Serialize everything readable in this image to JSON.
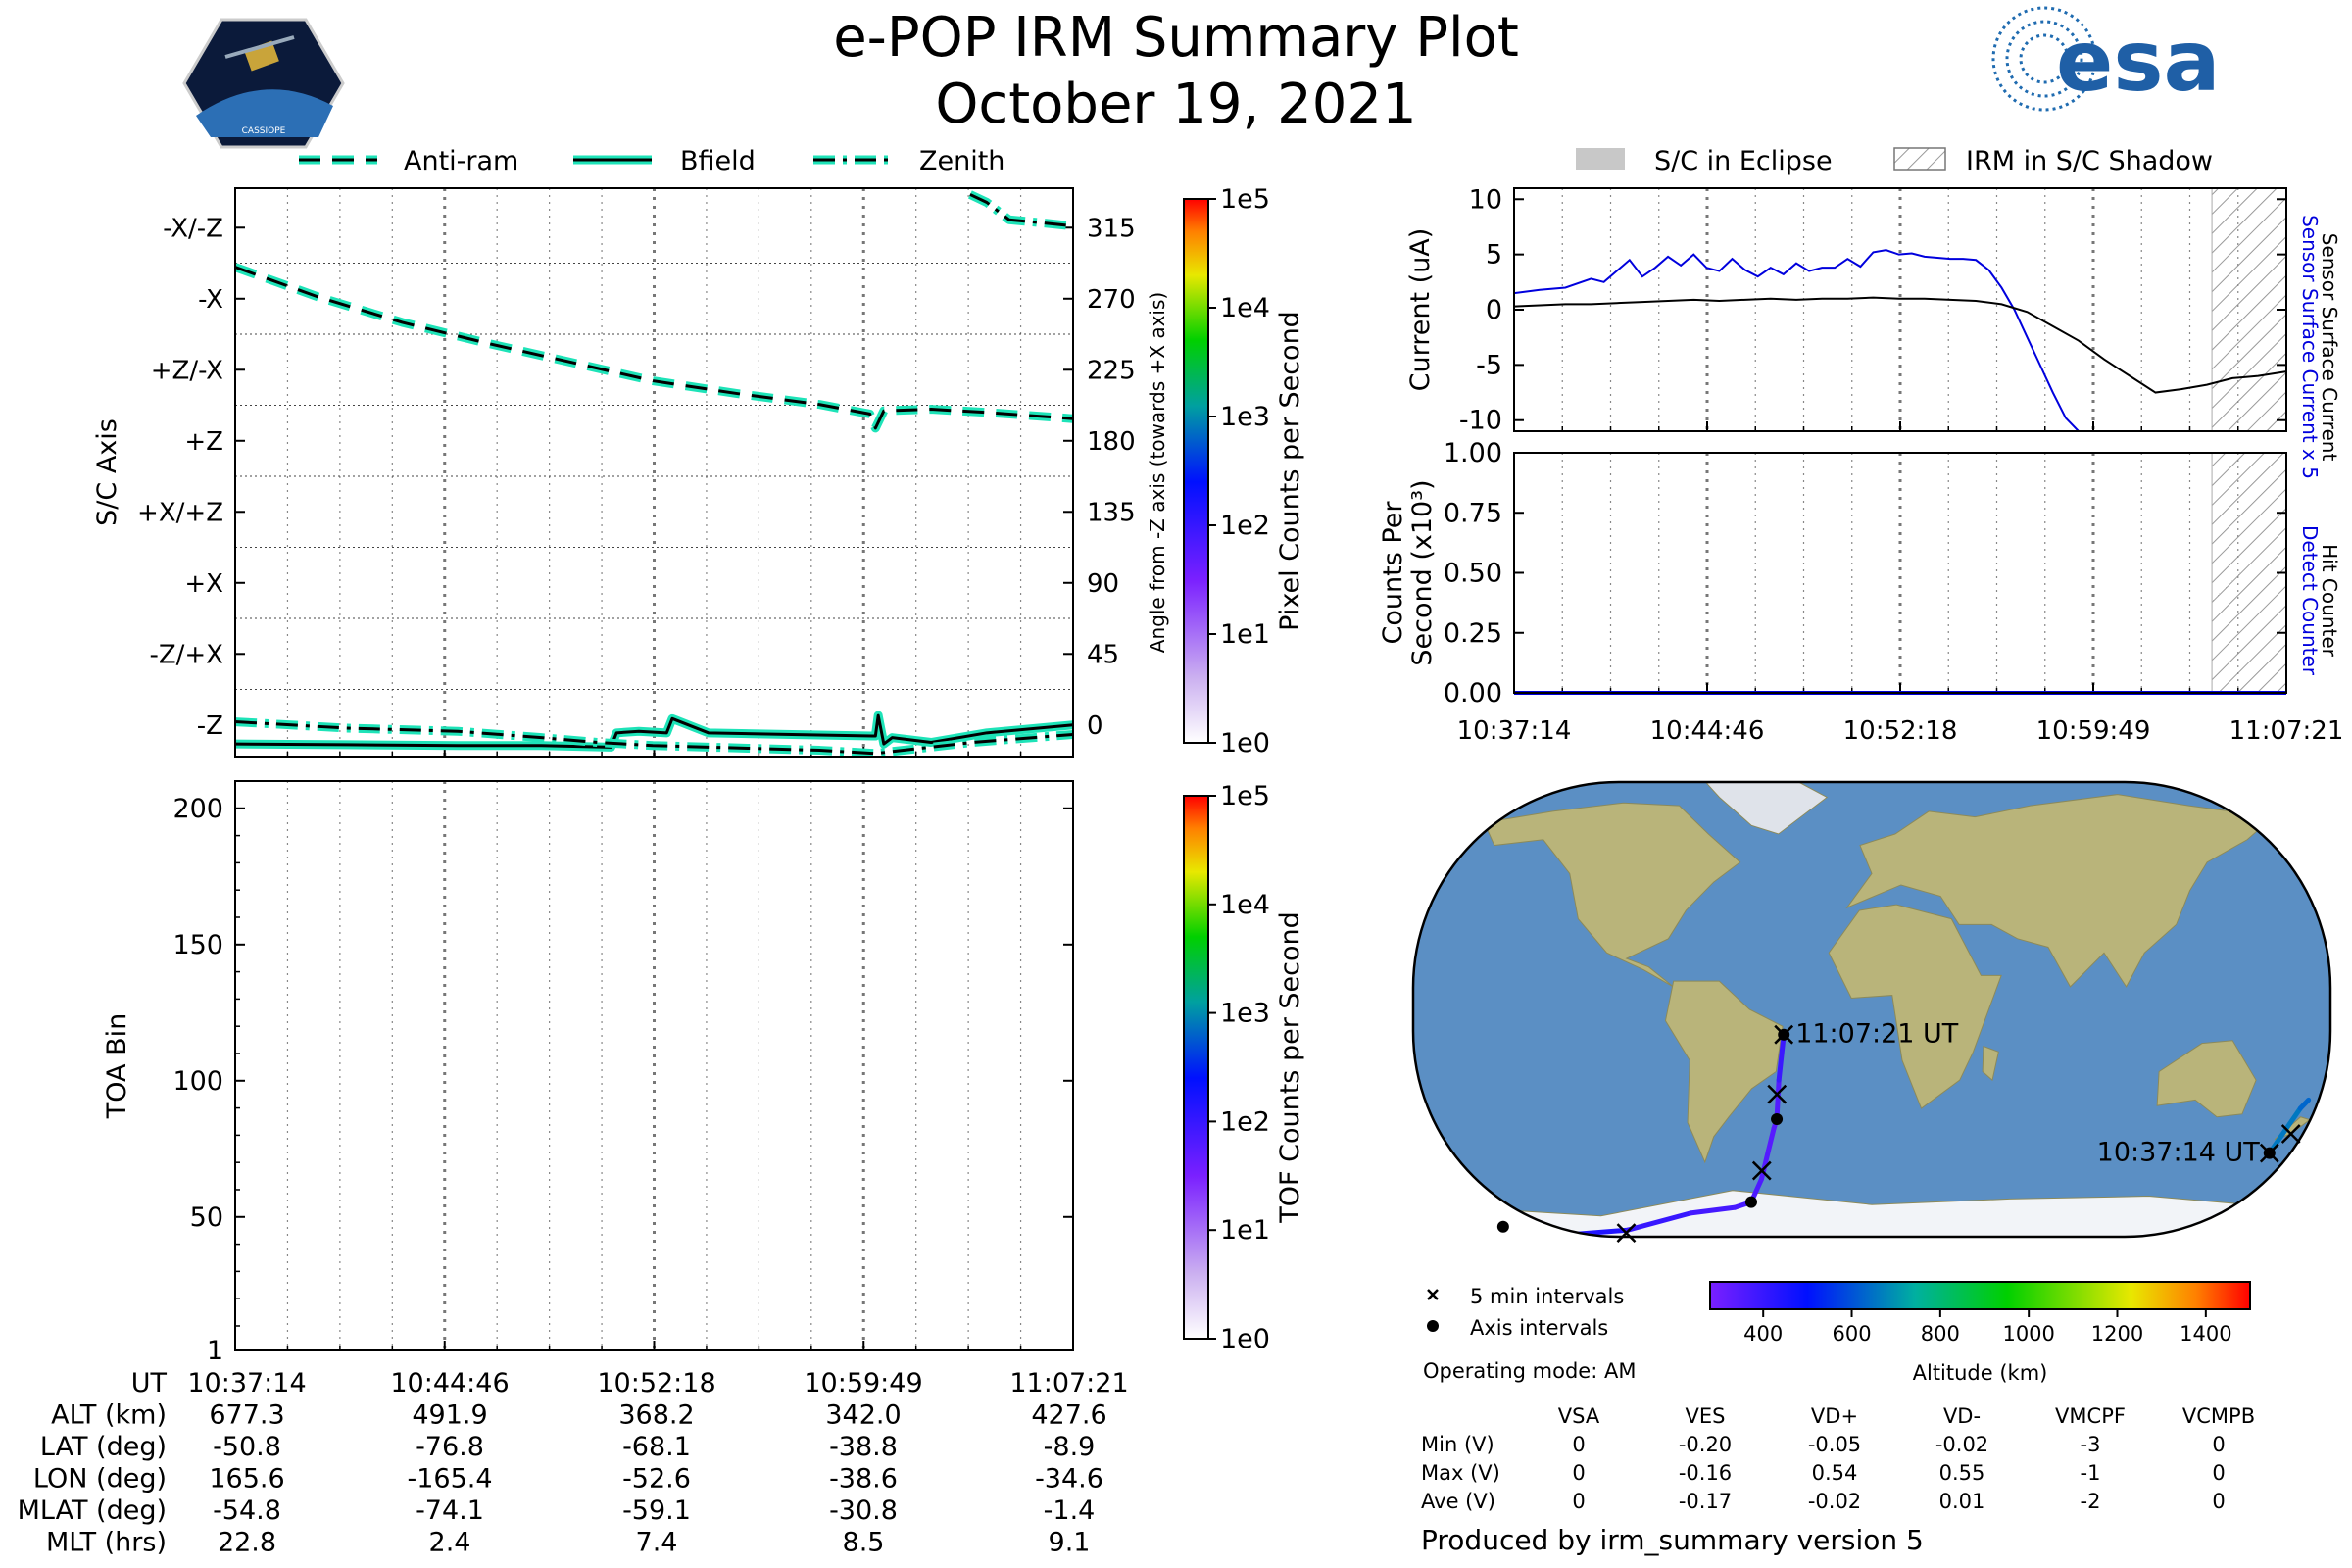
{
  "header": {
    "title": "e-POP IRM Summary Plot",
    "date": "October 19, 2021",
    "left_logo_text": "CASSIOPE",
    "right_logo_text": "esa"
  },
  "colors": {
    "trace_edge": "#1ee3b8",
    "trace_core": "#000000",
    "sensor_x5": "#0000dd",
    "counter": "#0000dd",
    "eclipse": "#c8c8c8",
    "ocean": "#5b8fc4",
    "land": "#b9b47a",
    "ice": "#f2f4f8"
  },
  "icons": [
    "cassiope-satellite-logo",
    "esa-logo-icon"
  ],
  "time_ticks": [
    "10:37:14",
    "10:44:46",
    "10:52:18",
    "10:59:49",
    "11:07:21"
  ],
  "chart_data": [
    {
      "id": "sc-axis",
      "type": "line",
      "ylabel": "S/C Axis",
      "ylabel_right": "Angle from -Z axis (towards +X axis)",
      "yticks_left": [
        "-Z",
        "-Z/+X",
        "+X",
        "+X/+Z",
        "+Z",
        "+Z/-X",
        "-X",
        "-X/-Z"
      ],
      "yticks_right": [
        0,
        45,
        90,
        135,
        180,
        225,
        270,
        315
      ],
      "ylim": [
        -20,
        340
      ],
      "xlim": [
        0,
        30.1
      ],
      "legend": {
        "placement": "top",
        "entries": [
          "Anti-ram",
          "Bfield",
          "Zenith"
        ]
      },
      "series": [
        {
          "name": "Anti-ram",
          "style": "dashed",
          "x": [
            0,
            3,
            6,
            9,
            12,
            15,
            18,
            21,
            22.8,
            23.0,
            23.3,
            25,
            27,
            30.1
          ],
          "y": [
            290,
            271,
            255,
            242,
            230,
            218,
            210,
            203,
            197,
            188,
            199,
            200,
            198,
            194
          ]
        },
        {
          "name": "Bfield",
          "style": "solid",
          "x": [
            0,
            4,
            8,
            11,
            13.5,
            13.7,
            14.5,
            15.5,
            15.7,
            17,
            20,
            23,
            23.1,
            23.3,
            23.6,
            25,
            27,
            30.1
          ],
          "y": [
            -12,
            -12.5,
            -13,
            -13,
            -14,
            -5,
            -4,
            -5,
            4,
            -5,
            -6,
            -7,
            6,
            -12,
            -8,
            -11,
            -5,
            0
          ]
        },
        {
          "name": "Zenith",
          "style": "dashdot",
          "x": [
            0,
            4,
            8,
            11,
            13,
            15,
            17,
            19,
            21,
            23,
            25,
            26.5,
            30.1
          ],
          "y": [
            2,
            -2,
            -4,
            -8,
            -11,
            -13,
            -14,
            -15,
            -16,
            -18,
            -14,
            -11,
            -6
          ]
        },
        {
          "name": "Zenith-top",
          "style": "dashdot",
          "x": [
            26.4,
            27,
            27.8,
            29,
            30.1
          ],
          "y": [
            336,
            331,
            320,
            318,
            316
          ]
        }
      ]
    },
    {
      "id": "pixel-counts-colorbar",
      "type": "heatmap",
      "label": "Pixel Counts per Second",
      "ticks": [
        "1e5",
        "1e4",
        "1e3",
        "1e2",
        "1e1",
        "1e0"
      ],
      "range": [
        1,
        100000
      ],
      "scale": "log"
    },
    {
      "id": "toa",
      "type": "heatmap",
      "ylabel": "TOA Bin",
      "yticks": [
        1,
        50,
        100,
        150,
        200
      ],
      "ylim": [
        1,
        210
      ],
      "values": []
    },
    {
      "id": "tof-counts-colorbar",
      "type": "heatmap",
      "label": "TOF Counts per Second",
      "ticks": [
        "1e5",
        "1e4",
        "1e3",
        "1e2",
        "1e1",
        "1e0"
      ],
      "range": [
        1,
        100000
      ],
      "scale": "log"
    },
    {
      "id": "current",
      "type": "line",
      "ylabel": "Current (uA)",
      "ylabel_right_top": "Sensor Surface Current x 5",
      "ylabel_right_bottom": "Sensor Surface Current",
      "ylim": [
        -11,
        11
      ],
      "yticks": [
        10,
        5,
        0,
        -5,
        -10
      ],
      "xlim": [
        0,
        30.1
      ],
      "legend": {
        "placement": "top",
        "entries": [
          "S/C in Eclipse",
          "IRM in S/C Shadow"
        ]
      },
      "shadow_interval": [
        27.2,
        30.1
      ],
      "series": [
        {
          "name": "Sensor Surface Current x 5",
          "color": "#0000dd",
          "x": [
            0,
            1,
            2,
            3,
            3.5,
            4,
            4.5,
            5,
            5.5,
            6,
            6.5,
            7,
            7.5,
            8,
            8.5,
            9,
            9.5,
            10,
            10.5,
            11,
            11.5,
            12,
            12.5,
            13,
            13.5,
            14,
            14.5,
            15,
            15.5,
            16,
            16.5,
            17,
            17.5,
            18,
            18.5,
            19,
            19.5,
            20,
            20.5,
            21,
            21.5,
            22
          ],
          "y": [
            1.5,
            1.8,
            2.0,
            2.8,
            2.5,
            3.5,
            4.5,
            3.0,
            3.8,
            4.8,
            4.0,
            5.0,
            3.8,
            3.5,
            4.6,
            3.6,
            3.0,
            3.8,
            3.2,
            4.2,
            3.5,
            3.8,
            3.8,
            4.6,
            3.9,
            5.2,
            5.4,
            5.0,
            5.1,
            4.8,
            4.7,
            4.6,
            4.6,
            4.5,
            3.6,
            2.0,
            0,
            -2.5,
            -5.0,
            -7.5,
            -9.8,
            -11
          ]
        },
        {
          "name": "Sensor Surface Current",
          "color": "#000000",
          "x": [
            0,
            1,
            2,
            3,
            4,
            5,
            6,
            7,
            8,
            9,
            10,
            11,
            12,
            13,
            14,
            15,
            16,
            17,
            18,
            19,
            20,
            21,
            22,
            23,
            24,
            25,
            26,
            27,
            28,
            29,
            30.1
          ],
          "y": [
            0.3,
            0.4,
            0.5,
            0.5,
            0.6,
            0.7,
            0.8,
            0.9,
            0.8,
            0.9,
            1.0,
            0.9,
            1.0,
            1.0,
            1.1,
            1.0,
            1.0,
            0.9,
            0.8,
            0.5,
            -0.2,
            -1.5,
            -2.8,
            -4.5,
            -6.0,
            -7.5,
            -7.2,
            -6.8,
            -6.2,
            -6.0,
            -5.6
          ]
        }
      ]
    },
    {
      "id": "hit-counter",
      "type": "line",
      "ylabel": "Counts Per Second (x10³)",
      "ylabel_right_top": "Detect Counter",
      "ylabel_right_bottom": "Hit Counter",
      "ylim": [
        0,
        1
      ],
      "yticks": [
        "1.00",
        "0.75",
        "0.50",
        "0.25",
        "0.00"
      ],
      "xlim": [
        0,
        30.1
      ],
      "shadow_interval": [
        27.2,
        30.1
      ],
      "series": [
        {
          "name": "Detect Counter",
          "color": "#0000dd",
          "x": [
            0,
            30.1
          ],
          "y": [
            0,
            0
          ]
        }
      ]
    },
    {
      "id": "ground-track",
      "type": "scatter",
      "colorbar_label": "Altitude (km)",
      "colorbar_ticks": [
        400,
        600,
        800,
        1000,
        1200,
        1400
      ],
      "colorbar_range": [
        280,
        1500
      ],
      "start_label": "10:37:14 UT",
      "end_label": "11:07:21 UT",
      "segments": [
        {
          "lon": [
            165.6,
            173.0,
            175.5
          ],
          "lat": [
            -50.8,
            -35,
            -32
          ],
          "alt": [
            677,
            640,
            620
          ]
        },
        {
          "lon": [
            -179,
            -170,
            -165.4,
            -140,
            -110,
            -80,
            -60,
            -52.6,
            -47,
            -43,
            -40,
            -38.6,
            -37,
            -34.6
          ],
          "lat": [
            -64,
            -72,
            -76.8,
            -79.8,
            -78,
            -72,
            -70,
            -68.1,
            -60,
            -50,
            -42,
            -38.8,
            -25,
            -8.9
          ],
          "alt": [
            560,
            510,
            492,
            460,
            420,
            380,
            372,
            368,
            355,
            345,
            342,
            342,
            360,
            428
          ]
        }
      ],
      "x_marks": [
        {
          "lon": 172.0,
          "lat": -44
        },
        {
          "lon": -111,
          "lat": -79
        },
        {
          "lon": -46.5,
          "lat": -57
        },
        {
          "lon": -38.0,
          "lat": -30
        },
        {
          "lon": -34.6,
          "lat": -8.9
        },
        {
          "lon": 165.6,
          "lat": -50.8
        }
      ],
      "dot_marks": [
        {
          "lon": -165.4,
          "lat": -76.8
        },
        {
          "lon": -52.6,
          "lat": -68.1
        },
        {
          "lon": -38.6,
          "lat": -38.8
        },
        {
          "lon": -34.6,
          "lat": -8.9
        },
        {
          "lon": 165.6,
          "lat": -50.8
        }
      ]
    }
  ],
  "map_legend": {
    "five_min": "5 min intervals",
    "axis_int": "Axis intervals",
    "operating_mode": "Operating mode: AM"
  },
  "voltage_table": {
    "headers": [
      "VSA",
      "VES",
      "VD+",
      "VD-",
      "VMCPF",
      "VCMPB"
    ],
    "rows": [
      {
        "label": "Min (V)",
        "values": [
          "0",
          "-0.20",
          "-0.05",
          "-0.02",
          "-3",
          "0"
        ]
      },
      {
        "label": "Max (V)",
        "values": [
          "0",
          "-0.16",
          "0.54",
          "0.55",
          "-1",
          "0"
        ]
      },
      {
        "label": "Ave (V)",
        "values": [
          "0",
          "-0.17",
          "-0.02",
          "0.01",
          "-2",
          "0"
        ]
      }
    ]
  },
  "ephemeris": {
    "labels": [
      "UT",
      "ALT (km)",
      "LAT (deg)",
      "LON (deg)",
      "MLAT (deg)",
      "MLT (hrs)"
    ],
    "columns": [
      [
        "10:37:14",
        "677.3",
        "-50.8",
        "165.6",
        "-54.8",
        "22.8"
      ],
      [
        "10:44:46",
        "491.9",
        "-76.8",
        "-165.4",
        "-74.1",
        "2.4"
      ],
      [
        "10:52:18",
        "368.2",
        "-68.1",
        "-52.6",
        "-59.1",
        "7.4"
      ],
      [
        "10:59:49",
        "342.0",
        "-38.8",
        "-38.6",
        "-30.8",
        "8.5"
      ],
      [
        "11:07:21",
        "427.6",
        "-8.9",
        "-34.6",
        "-1.4",
        "9.1"
      ]
    ]
  },
  "footer": "Produced by irm_summary version 5"
}
